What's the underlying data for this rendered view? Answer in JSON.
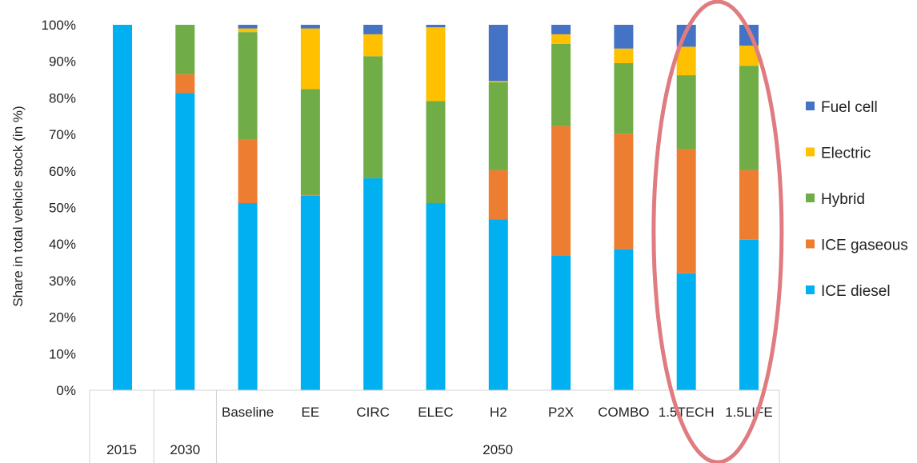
{
  "chart_data": {
    "type": "bar",
    "stacked": true,
    "ylabel": "Share in total vehicle stock (in %)",
    "ylim": [
      0,
      100
    ],
    "yticks": [
      "0%",
      "10%",
      "20%",
      "30%",
      "40%",
      "50%",
      "60%",
      "70%",
      "80%",
      "90%",
      "100%"
    ],
    "categories": [
      "",
      "",
      "Baseline",
      "EE",
      "CIRC",
      "ELEC",
      "H2",
      "P2X",
      "COMBO",
      "1.5TECH",
      "1.5LIFE"
    ],
    "groups": [
      {
        "label": "2015",
        "categories": [
          0
        ]
      },
      {
        "label": "2030",
        "categories": [
          1
        ]
      },
      {
        "label": "2050",
        "categories": [
          2,
          3,
          4,
          5,
          6,
          7,
          8,
          9,
          10
        ]
      }
    ],
    "series": [
      {
        "name": "ICE diesel",
        "color": "#00B0F0",
        "values": [
          100,
          81.3,
          51.2,
          53.2,
          58.0,
          51.2,
          46.8,
          36.9,
          38.6,
          32.0,
          41.2
        ]
      },
      {
        "name": "ICE gaseous",
        "color": "#ED7D31",
        "values": [
          0,
          5.2,
          17.5,
          0.3,
          0,
          0,
          13.4,
          35.4,
          31.6,
          34.0,
          19.0
        ]
      },
      {
        "name": "Hybrid",
        "color": "#70AD47",
        "values": [
          0,
          13.5,
          29.3,
          28.9,
          33.4,
          27.9,
          24.1,
          22.5,
          19.3,
          20.2,
          28.6
        ]
      },
      {
        "name": "Electric",
        "color": "#FFC000",
        "values": [
          0,
          0,
          1.0,
          16.6,
          6.0,
          20.2,
          0.3,
          2.6,
          4.0,
          7.8,
          5.5
        ]
      },
      {
        "name": "Fuel cell",
        "color": "#4472C4",
        "values": [
          0,
          0,
          1.0,
          1.0,
          2.6,
          0.7,
          15.4,
          2.6,
          6.5,
          6.0,
          5.7
        ]
      }
    ],
    "legend_position": "right",
    "legend_order": [
      "Fuel cell",
      "Electric",
      "Hybrid",
      "ICE gaseous",
      "ICE diesel"
    ],
    "grid": false,
    "annotations": [
      {
        "type": "ellipse",
        "color": "#E07B80",
        "highlights": [
          "1.5TECH",
          "1.5LIFE"
        ]
      }
    ]
  }
}
